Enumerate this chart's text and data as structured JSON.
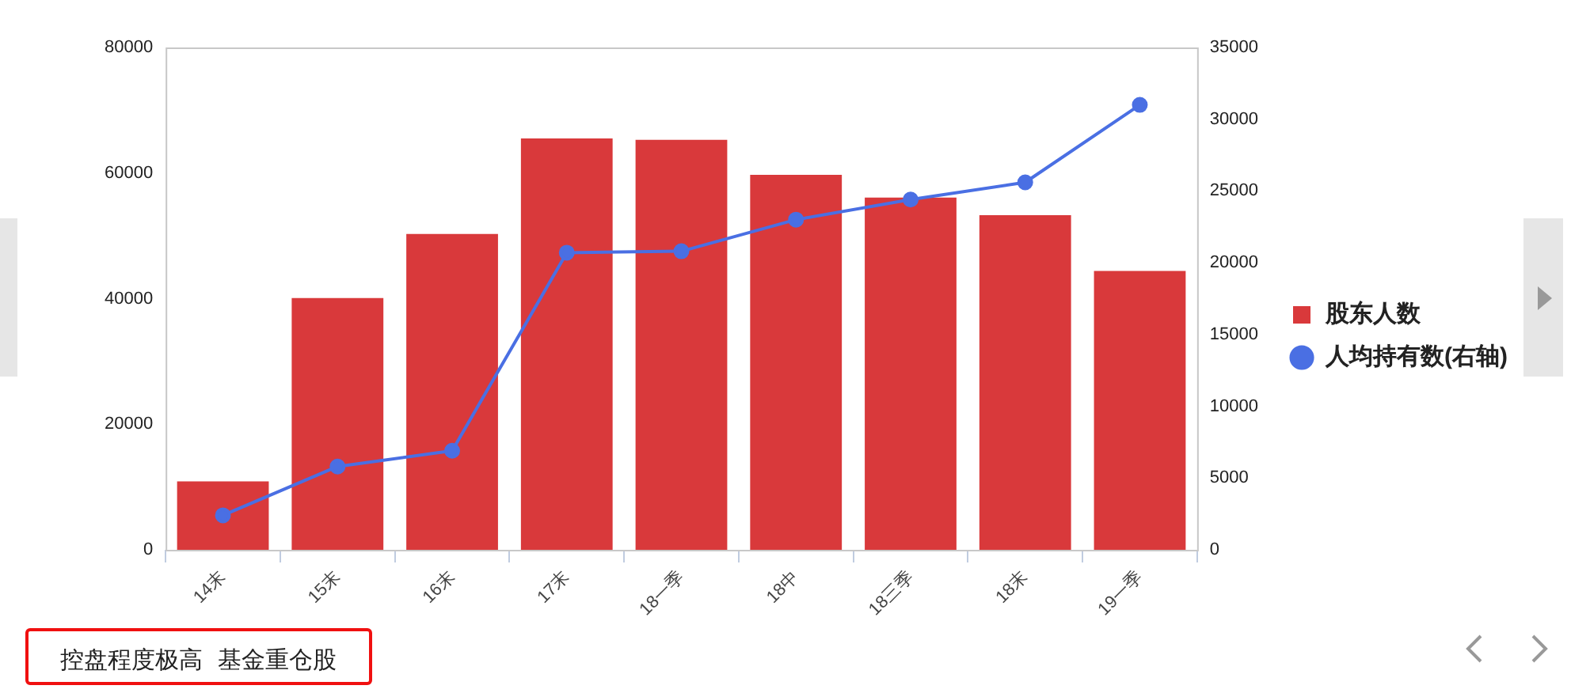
{
  "chart_data": {
    "type": "bar",
    "categories": [
      "14末",
      "15末",
      "16末",
      "17末",
      "18一季",
      "18中",
      "18三季",
      "18末",
      "19一季"
    ],
    "series": [
      {
        "name": "股东人数",
        "color": "#d9393b",
        "values": [
          10900,
          40100,
          50300,
          65500,
          65300,
          59700,
          56100,
          53300,
          44400
        ]
      },
      {
        "name": "人均持有数(右轴)",
        "type": "line",
        "axis": "y2",
        "color": "#4a6fe3",
        "marker": "circle",
        "values": [
          2400,
          5800,
          6900,
          20700,
          20800,
          23000,
          24400,
          25600,
          31000
        ]
      }
    ],
    "ylim": [
      0,
      80000
    ],
    "yticks": [
      0,
      20000,
      40000,
      60000,
      80000
    ],
    "y2lim": [
      0,
      35000
    ],
    "y2ticks": [
      0,
      5000,
      10000,
      15000,
      20000,
      25000,
      30000,
      35000
    ],
    "grid": false,
    "legend": "right",
    "annotations": [
      "控盘程度极高  基金重仓股"
    ]
  }
}
